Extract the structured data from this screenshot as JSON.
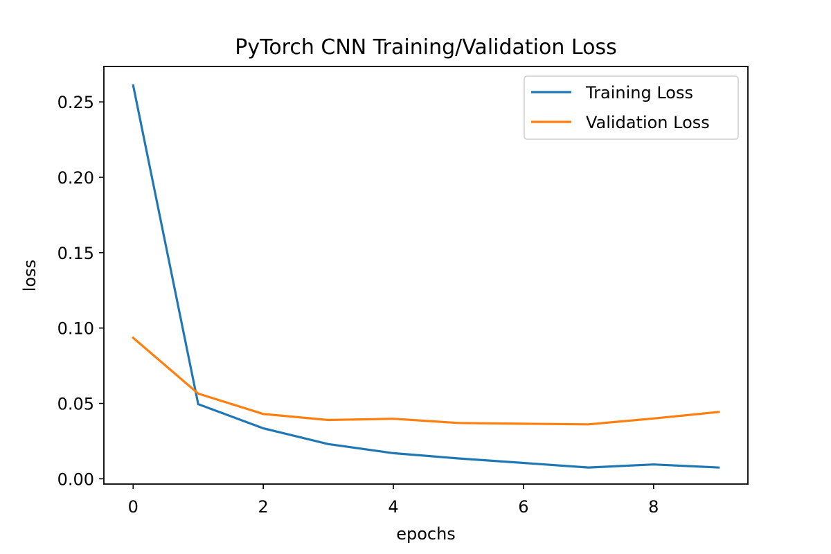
{
  "chart_data": {
    "type": "line",
    "title": "PyTorch CNN Training/Validation Loss",
    "xlabel": "epochs",
    "ylabel": "loss",
    "xlim": [
      -0.45,
      9.45
    ],
    "ylim": [
      -0.0035,
      0.2735
    ],
    "xticks": [
      0,
      2,
      4,
      6,
      8
    ],
    "xtick_labels": [
      "0",
      "2",
      "4",
      "6",
      "8"
    ],
    "yticks": [
      0.0,
      0.05,
      0.1,
      0.15,
      0.2,
      0.25
    ],
    "ytick_labels": [
      "0.00",
      "0.05",
      "0.10",
      "0.15",
      "0.20",
      "0.25"
    ],
    "grid": false,
    "legend_position": "top-right",
    "x": [
      0,
      1,
      2,
      3,
      4,
      5,
      6,
      7,
      8,
      9
    ],
    "series": [
      {
        "name": "Training Loss",
        "color": "#1f77b4",
        "values": [
          0.261,
          0.0495,
          0.0335,
          0.023,
          0.017,
          0.0135,
          0.0105,
          0.0075,
          0.0095,
          0.0075
        ]
      },
      {
        "name": "Validation Loss",
        "color": "#ff7f0e",
        "values": [
          0.0935,
          0.0565,
          0.043,
          0.039,
          0.0398,
          0.037,
          0.0365,
          0.0361,
          0.04,
          0.0443
        ]
      }
    ]
  }
}
